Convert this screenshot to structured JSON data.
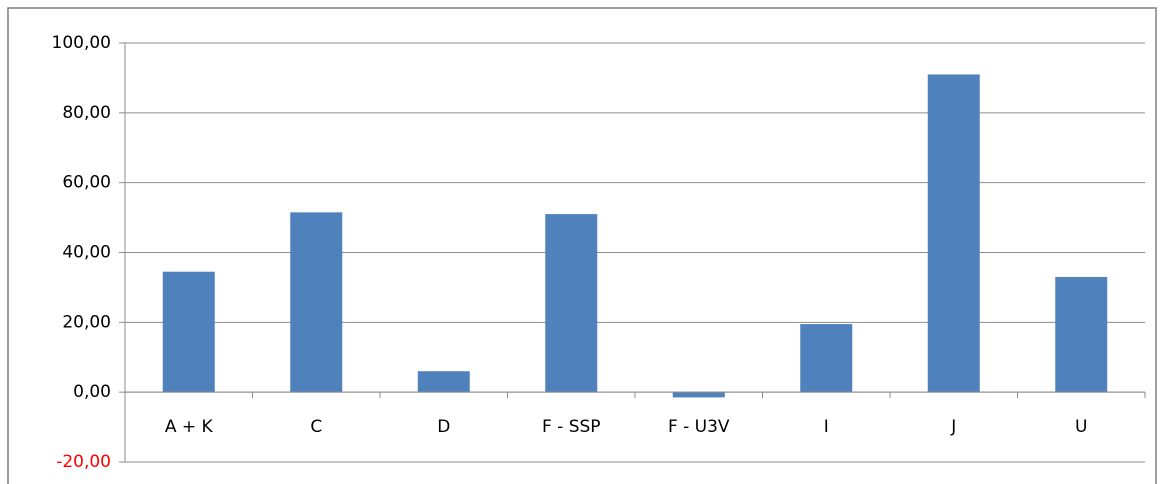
{
  "chart_data": {
    "type": "bar",
    "categories": [
      "A + K",
      "C",
      "D",
      "F - SSP",
      "F - U3V",
      "I",
      "J",
      "U"
    ],
    "values": [
      34.5,
      51.5,
      6,
      51,
      -1.5,
      19.5,
      91,
      33
    ],
    "color": "#4f81bd",
    "ylim": [
      -20,
      100
    ],
    "yticks": [
      {
        "value": -20,
        "label": "-20,00"
      },
      {
        "value": 0,
        "label": "0,00"
      },
      {
        "value": 20,
        "label": "20,00"
      },
      {
        "value": 40,
        "label": "40,00"
      },
      {
        "value": 60,
        "label": "60,00"
      },
      {
        "value": 80,
        "label": "80,00"
      },
      {
        "value": 100,
        "label": "100,00"
      }
    ],
    "negative_tick_color": "#ff0000",
    "grid": true
  }
}
